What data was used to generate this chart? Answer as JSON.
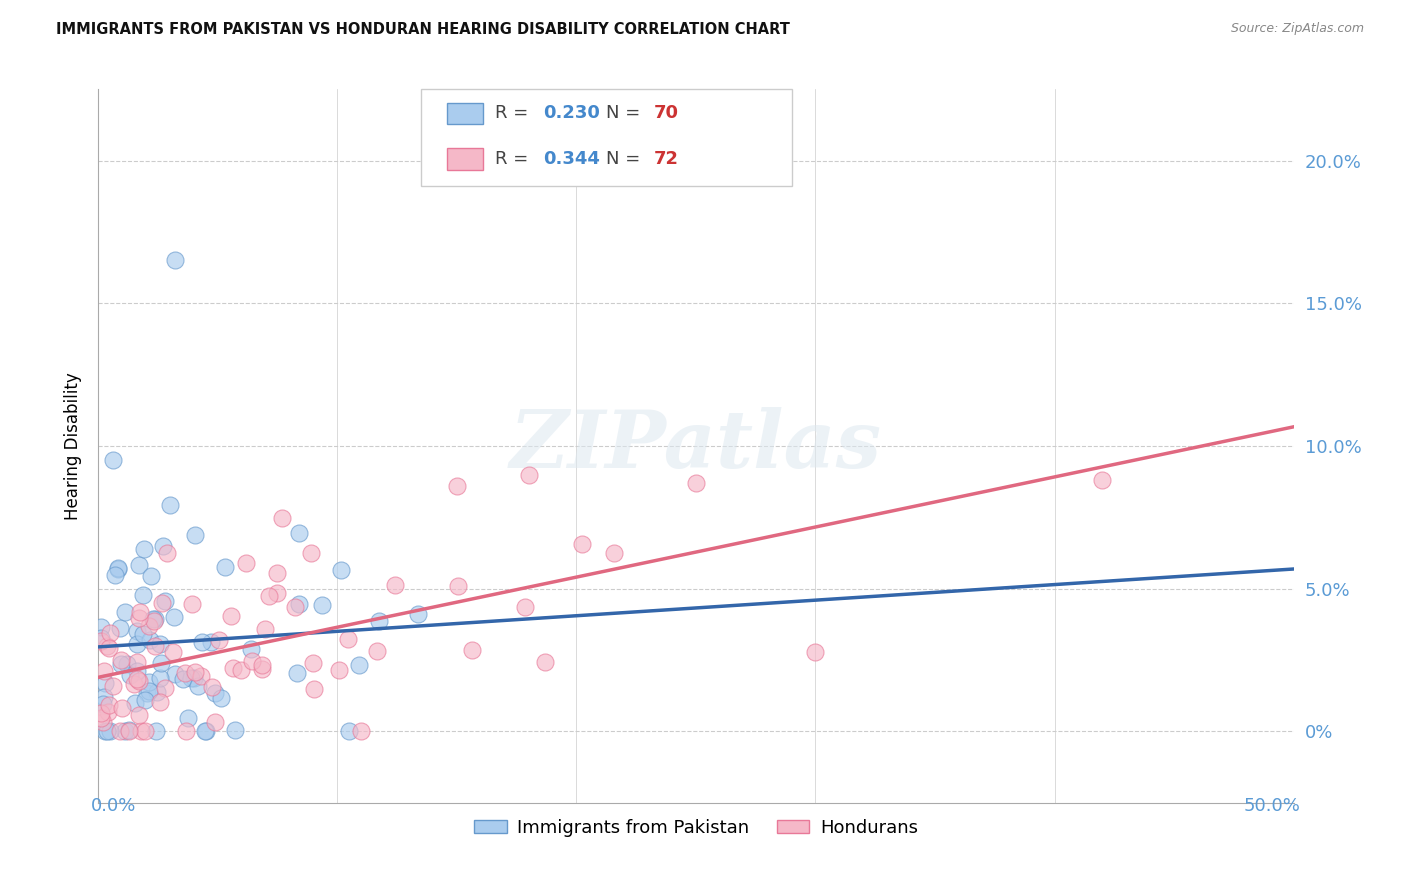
{
  "title": "IMMIGRANTS FROM PAKISTAN VS HONDURAN HEARING DISABILITY CORRELATION CHART",
  "source": "Source: ZipAtlas.com",
  "ylabel": "Hearing Disability",
  "xlim": [
    0.0,
    0.5
  ],
  "ylim": [
    -0.025,
    0.225
  ],
  "yticks": [
    0.0,
    0.05,
    0.1,
    0.15,
    0.2
  ],
  "ytick_labels": [
    "0%",
    "5.0%",
    "10.0%",
    "15.0%",
    "20.0%"
  ],
  "series1_label": "Immigrants from Pakistan",
  "series1_color": "#aaccee",
  "series1_edge_color": "#6699cc",
  "series1_R": 0.23,
  "series1_N": 70,
  "series2_label": "Hondurans",
  "series2_color": "#f5b8c8",
  "series2_edge_color": "#e87898",
  "series2_R": 0.344,
  "series2_N": 72,
  "blue_line_color": "#3366aa",
  "pink_line_color": "#e06880",
  "dashed_line_color": "#99bbdd",
  "grid_color": "#cccccc",
  "background_color": "#ffffff",
  "axis_label_color": "#5b9bd5",
  "title_fontsize": 10.5,
  "watermark": "ZIPatlas"
}
